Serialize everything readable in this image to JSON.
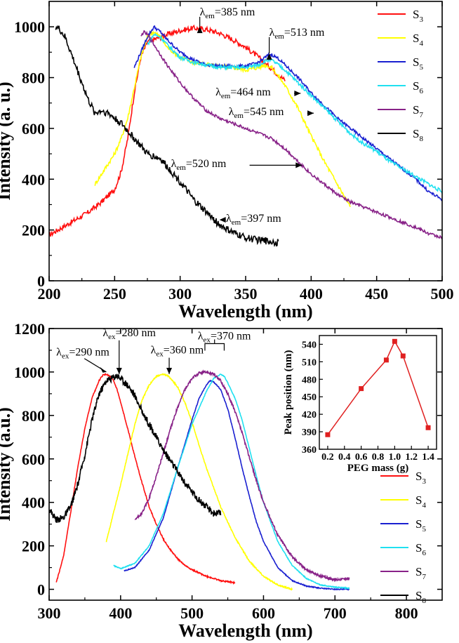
{
  "chart_data": [
    {
      "type": "line",
      "id": "top",
      "title": "",
      "xlabel": "Wavelength (nm)",
      "ylabel": "Intensity (a. u.)",
      "xlim": [
        200,
        500
      ],
      "ylim": [
        0,
        1100
      ],
      "xticks": [
        200,
        250,
        300,
        350,
        400,
        450,
        500
      ],
      "yticks": [
        0,
        200,
        400,
        600,
        800,
        1000
      ],
      "legend_position": "top-right",
      "series": [
        {
          "name": "S3",
          "color": "#ff1010",
          "noise": 10,
          "x": [
            200,
            210,
            220,
            230,
            240,
            250,
            255,
            260,
            265,
            270,
            275,
            280,
            290,
            300,
            310,
            320,
            330,
            340,
            350,
            360,
            365,
            370,
            375,
            380
          ],
          "y": [
            180,
            210,
            240,
            270,
            310,
            360,
            430,
            560,
            740,
            880,
            940,
            950,
            970,
            985,
            995,
            990,
            975,
            950,
            920,
            880,
            855,
            835,
            810,
            790
          ]
        },
        {
          "name": "S4",
          "color": "#ffff00",
          "noise": 8,
          "x": [
            235,
            240,
            245,
            250,
            255,
            260,
            265,
            270,
            275,
            278,
            280,
            285,
            290,
            300,
            310,
            320,
            330,
            340,
            350,
            360,
            365,
            370,
            380,
            390,
            400,
            410,
            420,
            430
          ],
          "y": [
            380,
            420,
            460,
            500,
            560,
            640,
            760,
            880,
            960,
            975,
            980,
            960,
            920,
            880,
            860,
            850,
            845,
            840,
            830,
            840,
            850,
            840,
            770,
            680,
            570,
            470,
            380,
            290
          ]
        },
        {
          "name": "S5",
          "color": "#1a20d0",
          "noise": 6,
          "x": [
            265,
            270,
            275,
            280,
            285,
            290,
            300,
            310,
            320,
            330,
            340,
            350,
            360,
            365,
            368,
            370,
            375,
            380,
            390,
            400,
            410,
            420,
            430,
            440,
            450,
            460,
            470,
            480,
            490,
            500
          ],
          "y": [
            840,
            900,
            960,
            1000,
            980,
            950,
            900,
            870,
            850,
            845,
            845,
            845,
            860,
            880,
            890,
            890,
            875,
            850,
            800,
            740,
            690,
            640,
            600,
            560,
            520,
            480,
            440,
            400,
            350,
            320
          ]
        },
        {
          "name": "S6",
          "color": "#20e0f0",
          "noise": 7,
          "x": [
            275,
            280,
            285,
            290,
            300,
            310,
            320,
            330,
            340,
            350,
            360,
            365,
            368,
            370,
            375,
            380,
            390,
            400,
            410,
            420,
            430,
            440,
            450,
            460,
            470,
            480,
            490,
            500
          ],
          "y": [
            930,
            970,
            960,
            930,
            880,
            860,
            850,
            840,
            840,
            840,
            850,
            865,
            870,
            868,
            850,
            830,
            780,
            730,
            680,
            630,
            580,
            540,
            510,
            470,
            440,
            410,
            380,
            350
          ]
        },
        {
          "name": "S7",
          "color": "#882288",
          "noise": 6,
          "x": [
            270,
            272,
            275,
            280,
            290,
            300,
            310,
            320,
            330,
            340,
            350,
            360,
            370,
            380,
            390,
            400,
            410,
            420,
            430,
            440,
            450,
            460,
            470,
            480,
            490,
            500
          ],
          "y": [
            960,
            980,
            970,
            930,
            850,
            780,
            720,
            670,
            640,
            620,
            600,
            580,
            560,
            520,
            470,
            420,
            380,
            340,
            310,
            290,
            270,
            250,
            230,
            210,
            185,
            170
          ]
        },
        {
          "name": "S8",
          "color": "#000000",
          "noise": 14,
          "x": [
            205,
            208,
            212,
            215,
            220,
            225,
            230,
            235,
            240,
            245,
            250,
            255,
            260,
            265,
            270,
            275,
            280,
            285,
            290,
            300,
            310,
            320,
            330,
            340,
            350,
            360,
            370,
            375
          ],
          "y": [
            1000,
            990,
            960,
            920,
            850,
            780,
            710,
            660,
            670,
            660,
            640,
            620,
            590,
            560,
            530,
            500,
            490,
            480,
            450,
            390,
            320,
            270,
            220,
            190,
            170,
            160,
            155,
            150
          ]
        }
      ],
      "annotations": [
        {
          "main": "λ",
          "sub": "em",
          "rest": "=385 nm",
          "x": 315,
          "y": 1045,
          "arrow_to": [
            315,
            1000
          ],
          "direction": "up"
        },
        {
          "main": "λ",
          "sub": "em",
          "rest": "=513 nm",
          "x": 368,
          "y": 965,
          "arrow_to": [
            368,
            895
          ],
          "direction": "up"
        },
        {
          "main": "λ",
          "sub": "em",
          "rest": "=464 nm",
          "x": 327,
          "y": 730,
          "arrow_to": [
            392,
            738
          ],
          "direction": "right"
        },
        {
          "main": "λ",
          "sub": "em",
          "rest": "=545 nm",
          "x": 337,
          "y": 652,
          "arrow_to": [
            402,
            660
          ],
          "direction": "right"
        },
        {
          "main": "λ",
          "sub": "em",
          "rest": "=520 nm",
          "x": 293,
          "y": 448,
          "arrow_to": [
            393,
            455
          ],
          "direction": "right"
        },
        {
          "main": "λ",
          "sub": "em",
          "rest": "=397 nm",
          "x": 335,
          "y": 232,
          "arrow_to": [
            330,
            240
          ],
          "direction": "left"
        }
      ]
    },
    {
      "type": "line",
      "id": "bottom",
      "title": "",
      "xlabel": "Wavelength (nm)",
      "ylabel": "Intensity (a.u.)",
      "xlim": [
        300,
        850
      ],
      "ylim": [
        -50,
        1200
      ],
      "xticks": [
        300,
        400,
        500,
        600,
        700,
        800
      ],
      "yticks": [
        0,
        200,
        400,
        600,
        800,
        1000,
        1200
      ],
      "legend_position": "bottom-right",
      "series": [
        {
          "name": "S3",
          "color": "#ff1010",
          "noise": 3,
          "x": [
            310,
            320,
            330,
            340,
            350,
            360,
            370,
            375,
            380,
            385,
            390,
            395,
            400,
            410,
            420,
            430,
            440,
            450,
            460,
            470,
            480,
            490,
            500,
            520,
            540,
            560
          ],
          "y": [
            30,
            150,
            350,
            560,
            740,
            880,
            960,
            985,
            990,
            980,
            960,
            920,
            860,
            740,
            610,
            490,
            380,
            300,
            230,
            180,
            140,
            110,
            90,
            60,
            40,
            30
          ]
        },
        {
          "name": "S4",
          "color": "#ffff00",
          "noise": 3,
          "x": [
            380,
            390,
            400,
            410,
            420,
            430,
            440,
            450,
            460,
            465,
            470,
            480,
            490,
            500,
            510,
            520,
            540,
            560,
            580,
            600,
            620,
            640
          ],
          "y": [
            220,
            350,
            480,
            620,
            760,
            870,
            940,
            980,
            990,
            985,
            970,
            930,
            860,
            770,
            660,
            560,
            380,
            240,
            130,
            60,
            20,
            0
          ]
        },
        {
          "name": "S5",
          "color": "#1a20d0",
          "noise": 2,
          "x": [
            405,
            420,
            440,
            460,
            480,
            500,
            510,
            520,
            525,
            530,
            540,
            550,
            560,
            570,
            580,
            590,
            600,
            620,
            640,
            660,
            680,
            700,
            720
          ],
          "y": [
            85,
            100,
            180,
            330,
            560,
            780,
            880,
            940,
            960,
            955,
            920,
            830,
            700,
            560,
            430,
            310,
            220,
            100,
            40,
            15,
            5,
            0,
            0
          ]
        },
        {
          "name": "S6",
          "color": "#20e0f0",
          "noise": 2,
          "x": [
            390,
            400,
            420,
            440,
            460,
            480,
            500,
            520,
            530,
            540,
            545,
            550,
            560,
            570,
            580,
            590,
            600,
            620,
            640,
            660,
            680,
            700,
            720
          ],
          "y": [
            110,
            95,
            120,
            200,
            350,
            560,
            760,
            910,
            970,
            990,
            980,
            950,
            880,
            780,
            650,
            520,
            400,
            220,
            110,
            50,
            20,
            10,
            5
          ]
        },
        {
          "name": "S7",
          "color": "#882288",
          "noise": 6,
          "x": [
            420,
            430,
            440,
            450,
            460,
            470,
            480,
            490,
            500,
            510,
            520,
            530,
            540,
            550,
            560,
            570,
            580,
            590,
            600,
            620,
            640,
            660,
            680,
            700,
            720
          ],
          "y": [
            320,
            350,
            420,
            520,
            630,
            740,
            840,
            920,
            970,
            995,
            1000,
            990,
            960,
            900,
            820,
            720,
            610,
            500,
            400,
            250,
            150,
            90,
            60,
            45,
            50
          ]
        },
        {
          "name": "S8",
          "color": "#000000",
          "noise": 16,
          "x": [
            300,
            310,
            320,
            330,
            340,
            350,
            360,
            370,
            380,
            390,
            395,
            400,
            410,
            420,
            430,
            440,
            450,
            460,
            470,
            480,
            490,
            500,
            510,
            520,
            530,
            540
          ],
          "y": [
            370,
            320,
            330,
            380,
            480,
            620,
            780,
            900,
            960,
            975,
            985,
            970,
            940,
            890,
            820,
            760,
            700,
            640,
            590,
            540,
            490,
            450,
            410,
            380,
            350,
            350
          ]
        }
      ],
      "annotations": [
        {
          "main": "λ",
          "sub": "ex",
          "rest": "=290 nm",
          "x": 310,
          "y": 1075,
          "arrow_to": [
            380,
            1000
          ],
          "direction": "diag"
        },
        {
          "main": "λ",
          "sub": "ex",
          "rest": "=280 nm",
          "x": 375,
          "y": 1165,
          "arrow_to": [
            398,
            990
          ],
          "direction": "down"
        },
        {
          "main": "λ",
          "sub": "ex",
          "rest": "=360 nm",
          "x": 442,
          "y": 1085,
          "arrow_to": [
            468,
            990
          ],
          "direction": "down"
        },
        {
          "main": "λ",
          "sub": "ex",
          "rest": "=370 nm",
          "x": 508,
          "y": 1150,
          "bracket": [
            518,
            545
          ]
        }
      ],
      "inset": {
        "type": "line",
        "xlabel": "PEG mass (g)",
        "ylabel": "Peak position (nm)",
        "xlim": [
          0.1,
          1.5
        ],
        "ylim": [
          360,
          555
        ],
        "xticks": [
          0.2,
          0.4,
          0.6,
          0.8,
          1.0,
          1.2,
          1.4
        ],
        "xtick_labels": [
          "0.2",
          "0.4",
          "0.6",
          "0.8",
          "1.0",
          "1.2",
          "1.4"
        ],
        "yticks": [
          360,
          390,
          420,
          450,
          480,
          510,
          540
        ],
        "color": "#e02020",
        "x": [
          0.2,
          0.6,
          0.9,
          1.0,
          1.1,
          1.4
        ],
        "y": [
          385,
          464,
          513,
          545,
          520,
          397
        ]
      }
    }
  ]
}
